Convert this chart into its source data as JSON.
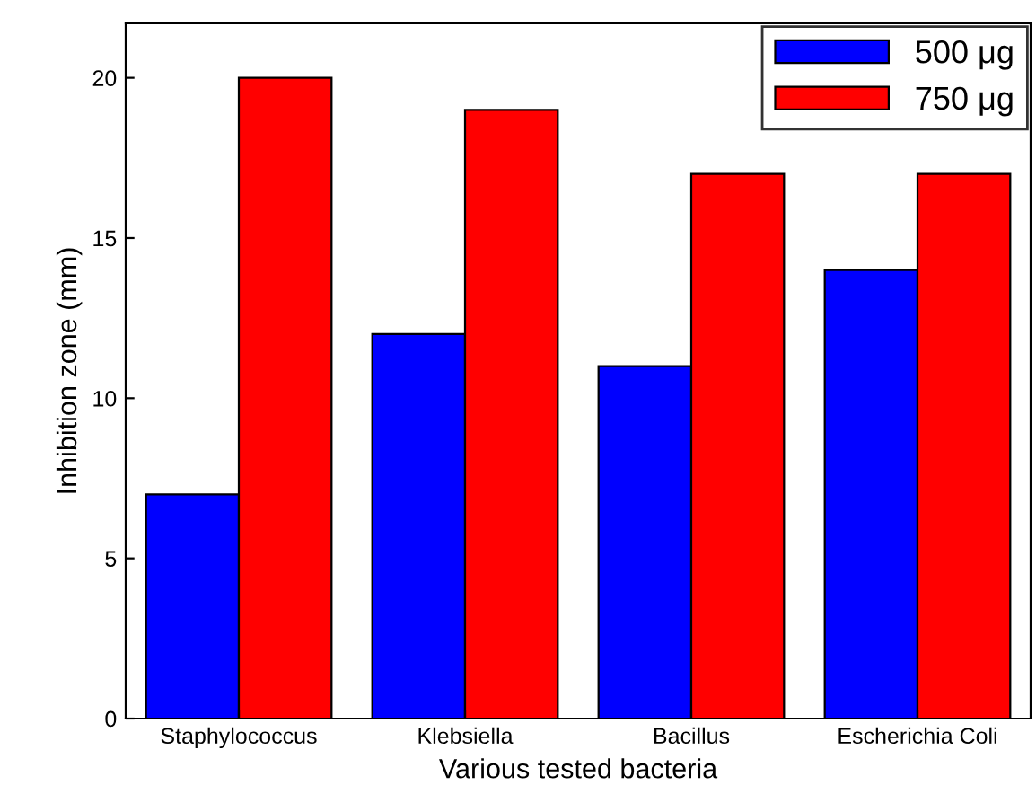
{
  "chart_data": {
    "type": "bar",
    "xlabel": "Various tested bacteria",
    "ylabel": "Inhibition zone (mm)",
    "categories": [
      "Staphylococcus",
      "Klebsiella",
      "Bacillus",
      "Escherichia Coli"
    ],
    "series": [
      {
        "name": "500 μg",
        "color": "#0000ff",
        "values": [
          7,
          12,
          11,
          14
        ]
      },
      {
        "name": "750 μg",
        "color": "#ff0000",
        "values": [
          20,
          19,
          17,
          17
        ]
      }
    ],
    "ylim": [
      0,
      21.7
    ],
    "yticks": [
      0,
      5,
      10,
      15,
      20
    ],
    "grid": false,
    "legend": "top right"
  }
}
